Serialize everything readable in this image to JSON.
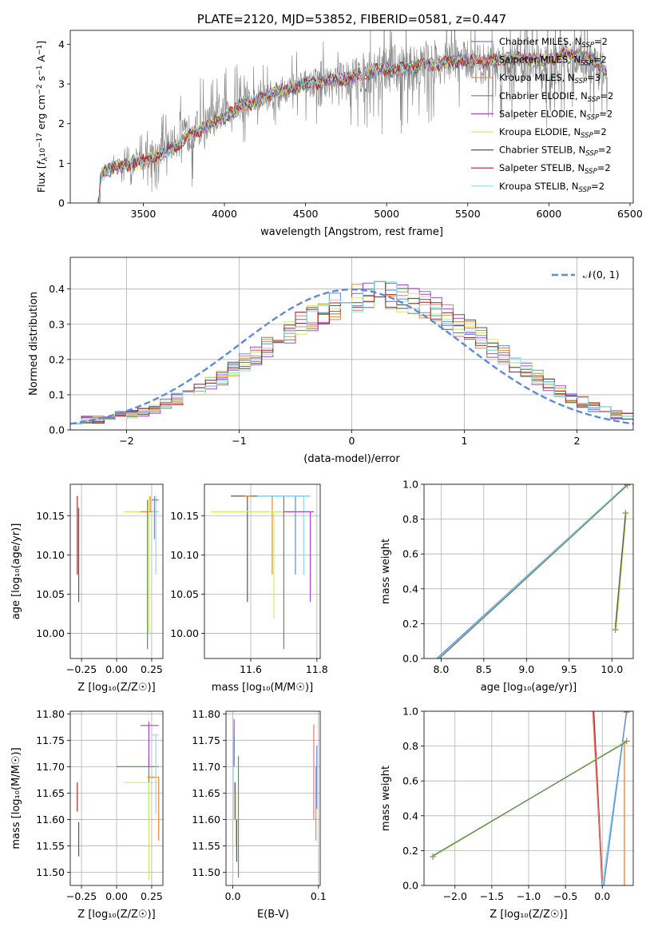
{
  "chart_data": [
    {
      "id": "spectrum",
      "type": "line",
      "title": "PLATE=2120, MJD=53852, FIBERID=0581, z=0.447",
      "xlabel": "wavelength [Angstrom, rest frame]",
      "ylabel_parts": [
        "Flux [",
        "f",
        "λ",
        "10",
        "−17",
        " erg cm",
        "−2",
        " s",
        "−1",
        " A",
        "−1",
        "]"
      ],
      "xlim": [
        3050,
        6520
      ],
      "ylim": [
        0,
        4.35
      ],
      "xticks": [
        3500,
        4000,
        4500,
        5000,
        5500,
        6000,
        6500
      ],
      "yticks": [
        0,
        1,
        2,
        3,
        4
      ],
      "grid": false,
      "legend_position": "upper-right",
      "observed": {
        "name": "data",
        "color": "#808080",
        "x": [
          3220,
          3240,
          3300,
          3400,
          3500,
          3600,
          3700,
          3800,
          3900,
          4000,
          4100,
          4200,
          4300,
          4400,
          4500,
          4600,
          4700,
          4800,
          4900,
          5000,
          5100,
          5200,
          5300,
          5400,
          5500,
          5600,
          5700,
          5800,
          5900,
          6000,
          6100,
          6200,
          6300,
          6360
        ],
        "y": [
          0.0,
          0.7,
          0.9,
          0.95,
          1.1,
          1.3,
          1.55,
          1.8,
          2.0,
          2.3,
          2.5,
          2.6,
          2.75,
          2.9,
          3.0,
          3.05,
          3.1,
          3.2,
          3.3,
          3.35,
          3.35,
          3.45,
          3.5,
          3.55,
          3.6,
          3.5,
          3.55,
          3.6,
          3.5,
          3.4,
          3.6,
          3.55,
          3.45,
          3.3
        ],
        "noise_amplitude_by_x": [
          [
            3220,
            0.1
          ],
          [
            3500,
            0.6
          ],
          [
            3800,
            1.0
          ],
          [
            4000,
            0.8
          ],
          [
            4500,
            0.7
          ],
          [
            5000,
            1.2
          ],
          [
            5500,
            1.0
          ],
          [
            6000,
            1.2
          ],
          [
            6360,
            0.9
          ]
        ]
      },
      "model": {
        "x": [
          3220,
          3240,
          3300,
          3400,
          3500,
          3600,
          3700,
          3800,
          3900,
          4000,
          4100,
          4200,
          4300,
          4400,
          4500,
          4600,
          4700,
          4800,
          4900,
          5000,
          5100,
          5200,
          5300,
          5400,
          5500,
          5600,
          5700,
          5800,
          5900,
          6000,
          6100,
          6200,
          6300,
          6360
        ],
        "y": [
          0.0,
          0.72,
          0.88,
          0.97,
          1.05,
          1.2,
          1.45,
          1.75,
          1.95,
          2.15,
          2.45,
          2.55,
          2.8,
          2.9,
          3.0,
          3.05,
          3.1,
          3.2,
          3.3,
          3.35,
          3.38,
          3.45,
          3.5,
          3.55,
          3.6,
          3.55,
          3.6,
          3.65,
          3.6,
          3.6,
          3.75,
          3.7,
          3.55,
          3.3
        ]
      },
      "series": [
        {
          "label": "Chabrier MILES, N",
          "sub": "SSP",
          "suffix": "=2",
          "color": "#6688dd"
        },
        {
          "label": "Salpeter MILES, N",
          "sub": "SSP",
          "suffix": "=2",
          "color": "#ee7766"
        },
        {
          "label": "Kroupa MILES, N",
          "sub": "SSP",
          "suffix": "=3",
          "color": "#ee8833"
        },
        {
          "label": "Chabrier ELODIE, N",
          "sub": "SSP",
          "suffix": "=2",
          "color": "#668866"
        },
        {
          "label": "Salpeter ELODIE, N",
          "sub": "SSP",
          "suffix": "=2",
          "color": "#aa44cc"
        },
        {
          "label": "Kroupa ELODIE, N",
          "sub": "SSP",
          "suffix": "=2",
          "color": "#ccee66"
        },
        {
          "label": "Chabrier STELIB, N",
          "sub": "SSP",
          "suffix": "=2",
          "color": "#555555"
        },
        {
          "label": "Salpeter STELIB, N",
          "sub": "SSP",
          "suffix": "=2",
          "color": "#aa2222"
        },
        {
          "label": "Kroupa STELIB, N",
          "sub": "SSP",
          "suffix": "=2",
          "color": "#88ddee"
        }
      ]
    },
    {
      "id": "residuals",
      "type": "histogram",
      "xlabel": "(data-model)/error",
      "ylabel": "Normed distribution",
      "xlim": [
        -2.5,
        2.5
      ],
      "ylim": [
        0,
        0.49
      ],
      "xticks": [
        -2,
        -1,
        0,
        1,
        2
      ],
      "yticks": [
        0.0,
        0.1,
        0.2,
        0.3,
        0.4
      ],
      "grid": true,
      "legend_position": "upper-right",
      "legend_label": "𝒩(0, 1)",
      "gaussian": {
        "mean": 0,
        "sigma": 1,
        "color": "#5b8bd9"
      },
      "bins": {
        "start": -2.5,
        "width": 0.1,
        "count": 50
      },
      "base_values": [
        0.028,
        0.028,
        0.03,
        0.035,
        0.04,
        0.045,
        0.052,
        0.06,
        0.075,
        0.088,
        0.1,
        0.115,
        0.13,
        0.15,
        0.17,
        0.19,
        0.212,
        0.235,
        0.258,
        0.28,
        0.3,
        0.32,
        0.338,
        0.354,
        0.366,
        0.376,
        0.382,
        0.384,
        0.382,
        0.376,
        0.366,
        0.354,
        0.338,
        0.32,
        0.3,
        0.28,
        0.258,
        0.235,
        0.212,
        0.19,
        0.168,
        0.148,
        0.128,
        0.11,
        0.094,
        0.08,
        0.066,
        0.054,
        0.044,
        0.036
      ]
    },
    {
      "id": "age-vs-Z",
      "type": "scatter",
      "xlabel": "Z [log₁₀(Z/Z☉)]",
      "ylabel": "age  [log₁₀(age/yr)]",
      "xlim": [
        -0.33,
        0.33
      ],
      "ylim": [
        9.968,
        10.19
      ],
      "xticks": [
        -0.25,
        0.0,
        0.25
      ],
      "xticklabels": [
        "−0.25",
        "0.00",
        "0.25"
      ],
      "yticks": [
        10.0,
        10.05,
        10.1,
        10.15
      ],
      "yticklabels": [
        "10.00",
        "10.05",
        "10.10",
        "10.15"
      ],
      "grid": true,
      "errorbars": [
        {
          "series": 7,
          "x": -0.28,
          "y": 10.12,
          "xerr": 0,
          "y0": 10.075,
          "y1": 10.175
        },
        {
          "series": 6,
          "x": -0.27,
          "y": 10.1,
          "xerr": 0,
          "y0": 10.04,
          "y1": 10.16
        },
        {
          "series": 3,
          "x": 0.22,
          "y": 10.1,
          "x0": 0.22,
          "x1": 0.22,
          "y0": 9.98,
          "y1": 10.17
        },
        {
          "series": 5,
          "x": 0.23,
          "y": 10.155,
          "x0": 0.05,
          "x1": 0.3,
          "y0": 10.0,
          "y1": 10.175
        },
        {
          "series": 2,
          "x": 0.24,
          "y": 10.155,
          "x0": 0.17,
          "x1": 0.3,
          "y0": 10.155,
          "y1": 10.175
        },
        {
          "series": 8,
          "x": 0.28,
          "y": 10.155,
          "x0": 0.25,
          "x1": 0.3,
          "y0": 10.075,
          "y1": 10.175
        },
        {
          "series": 0,
          "x": 0.27,
          "y": 10.17,
          "x0": 0.25,
          "x1": 0.3,
          "y0": 10.12,
          "y1": 10.175
        }
      ]
    },
    {
      "id": "age-vs-mass",
      "type": "scatter",
      "xlabel": "mass [log₁₀(M/M☉)]",
      "ylabel": "",
      "xlim": [
        11.46,
        11.81
      ],
      "ylim": [
        9.968,
        10.19
      ],
      "xticks": [
        11.6,
        11.8
      ],
      "xticklabels": [
        "11.6",
        "11.8"
      ],
      "yticks": [
        10.0,
        10.05,
        10.1,
        10.15
      ],
      "yticklabels": [
        "10.00",
        "10.05",
        "10.10",
        "10.15"
      ],
      "grid": true,
      "errorbars": [
        {
          "series": 6,
          "x0": 11.54,
          "x1": 11.64,
          "xv": 11.59,
          "y0": 10.04,
          "y1": 10.175
        },
        {
          "series": 2,
          "x0": 11.58,
          "x1": 11.67,
          "xv": 11.665,
          "y0": 10.075,
          "y1": 10.175
        },
        {
          "series": 5,
          "x0": 11.48,
          "x1": 11.79,
          "xv": 11.67,
          "y0": 10.02,
          "y1": 10.155
        },
        {
          "series": 3,
          "x0": 11.6,
          "x1": 11.78,
          "xv": 11.7,
          "y0": 9.98,
          "y1": 10.175
        },
        {
          "series": 0,
          "x0": 11.62,
          "x1": 11.78,
          "xv": 11.735,
          "y0": 10.075,
          "y1": 10.175
        },
        {
          "series": 8,
          "x0": 11.62,
          "x1": 11.78,
          "xv": 11.76,
          "y0": 10.075,
          "y1": 10.175
        },
        {
          "series": 4,
          "x0": 11.7,
          "x1": 11.79,
          "xv": 11.78,
          "y0": 10.04,
          "y1": 10.155
        }
      ]
    },
    {
      "id": "massweight-vs-age",
      "type": "line",
      "xlabel": "age  [log₁₀(age/yr)]",
      "ylabel": "mass weight",
      "xlim": [
        7.8,
        10.25
      ],
      "ylim": [
        0,
        1.0
      ],
      "xticks": [
        8.0,
        8.5,
        9.0,
        9.5,
        10.0
      ],
      "xticklabels": [
        "8.0",
        "8.5",
        "9.0",
        "9.5",
        "10.0"
      ],
      "yticks": [
        0.0,
        0.2,
        0.4,
        0.6,
        0.8,
        1.0
      ],
      "yticklabels": [
        "0.0",
        "0.2",
        "0.4",
        "0.6",
        "0.8",
        "1.0"
      ],
      "grid": true,
      "lines": [
        {
          "series": 0,
          "x": [
            7.95,
            10.18
          ],
          "y": [
            0.0,
            1.0
          ]
        },
        {
          "series": 8,
          "x": [
            7.97,
            10.18
          ],
          "y": [
            0.0,
            1.0
          ]
        },
        {
          "series": 3,
          "x": [
            7.98,
            10.17
          ],
          "y": [
            0.0,
            0.99
          ]
        },
        {
          "series": 5,
          "x": [
            10.05,
            10.17
          ],
          "y": [
            0.16,
            0.84
          ]
        },
        {
          "series": 6,
          "x": [
            10.04,
            10.16
          ],
          "y": [
            0.17,
            0.83
          ]
        }
      ],
      "markers": [
        [
          10.04,
          0.165
        ],
        [
          10.16,
          0.835
        ],
        [
          10.18,
          0.995
        ]
      ]
    },
    {
      "id": "mass-vs-Z",
      "type": "scatter",
      "xlabel": "Z [log₁₀(Z/Z☉)]",
      "ylabel": "mass [log₁₀(M/M☉)]",
      "xlim": [
        -0.33,
        0.33
      ],
      "ylim": [
        11.475,
        11.805
      ],
      "xticks": [
        -0.25,
        0.0,
        0.25
      ],
      "xticklabels": [
        "−0.25",
        "0.00",
        "0.25"
      ],
      "yticks": [
        11.5,
        11.55,
        11.6,
        11.65,
        11.7,
        11.75,
        11.8
      ],
      "yticklabels": [
        "11.50",
        "11.55",
        "11.60",
        "11.65",
        "11.70",
        "11.75",
        "11.80"
      ],
      "grid": true,
      "errorbars": [
        {
          "series": 7,
          "x": -0.28,
          "xl": -0.28,
          "xr": -0.28,
          "y0": 11.615,
          "y1": 11.67,
          "yv": 11.64
        },
        {
          "series": 6,
          "x": -0.27,
          "xl": -0.27,
          "xr": -0.27,
          "y0": 11.53,
          "y1": 11.595,
          "yv": 11.56
        },
        {
          "series": 3,
          "x": 0.23,
          "xl": 0.0,
          "xr": 0.3,
          "y0": 11.6,
          "y1": 11.72,
          "yv": 11.7
        },
        {
          "series": 5,
          "x": 0.23,
          "xl": 0.05,
          "xr": 0.3,
          "y0": 11.485,
          "y1": 11.67,
          "yv": 11.67
        },
        {
          "series": 4,
          "x": 0.23,
          "xl": 0.17,
          "xr": 0.3,
          "y0": 11.7,
          "y1": 11.785,
          "yv": 11.778
        },
        {
          "series": 2,
          "x": 0.3,
          "xl": 0.22,
          "xr": 0.3,
          "y0": 11.56,
          "y1": 11.68,
          "yv": 11.68
        },
        {
          "series": 8,
          "x": 0.28,
          "xl": 0.25,
          "xr": 0.3,
          "y0": 11.61,
          "y1": 11.76,
          "yv": 11.76
        }
      ]
    },
    {
      "id": "mass-vs-ebv",
      "type": "scatter",
      "xlabel": "E(B-V)",
      "ylabel": "",
      "xlim": [
        -0.008,
        0.102
      ],
      "ylim": [
        11.475,
        11.805
      ],
      "xticks": [
        0.0,
        0.1
      ],
      "xticklabels": [
        "0.0",
        "0.1"
      ],
      "yticks": [
        11.5,
        11.55,
        11.6,
        11.65,
        11.7,
        11.75,
        11.8
      ],
      "yticklabels": [
        "11.50",
        "11.55",
        "11.60",
        "11.65",
        "11.70",
        "11.75",
        "11.80"
      ],
      "grid": true,
      "errorbars": [
        {
          "series": 8,
          "x": 0.0005,
          "y0": 11.6,
          "y1": 11.76
        },
        {
          "series": 4,
          "x": 0.0015,
          "y0": 11.7,
          "y1": 11.79
        },
        {
          "series": 7,
          "x": 0.0025,
          "y0": 11.6,
          "y1": 11.67
        },
        {
          "series": 5,
          "x": 0.0035,
          "y0": 11.55,
          "y1": 11.65
        },
        {
          "series": 6,
          "x": 0.0045,
          "y0": 11.52,
          "y1": 11.6
        },
        {
          "series": 3,
          "x": 0.0065,
          "y0": 11.49,
          "y1": 11.72
        },
        {
          "series": 1,
          "x": 0.0945,
          "y0": 11.6,
          "y1": 11.78
        },
        {
          "series": 2,
          "x": 0.097,
          "y0": 11.56,
          "y1": 11.7
        },
        {
          "series": 0,
          "x": 0.098,
          "y0": 11.62,
          "y1": 11.74
        }
      ]
    },
    {
      "id": "massweight-vs-Z",
      "type": "line",
      "xlabel": "Z [log₁₀(Z/Z☉)]",
      "ylabel": "mass weight",
      "xlim": [
        -2.42,
        0.42
      ],
      "ylim": [
        0,
        1.0
      ],
      "xticks": [
        -2.0,
        -1.5,
        -1.0,
        -0.5,
        0.0
      ],
      "xticklabels": [
        "−2.0",
        "−1.5",
        "−1.0",
        "−0.5",
        "0.0"
      ],
      "yticks": [
        0.0,
        0.2,
        0.4,
        0.6,
        0.8,
        1.0
      ],
      "yticklabels": [
        "0.0",
        "0.2",
        "0.4",
        "0.6",
        "0.8",
        "1.0"
      ],
      "grid": true,
      "lines": [
        {
          "series": 7,
          "x": [
            -0.12,
            0.0
          ],
          "y": [
            1.0,
            0.0
          ]
        },
        {
          "series": 1,
          "x": [
            -0.13,
            0.0
          ],
          "y": [
            1.0,
            0.0
          ]
        },
        {
          "series": 2,
          "x": [
            0.3,
            0.3
          ],
          "y": [
            0.0,
            0.83
          ]
        },
        {
          "series": 8,
          "x": [
            0.0,
            0.33
          ],
          "y": [
            0.0,
            1.0
          ]
        },
        {
          "series": 0,
          "x": [
            0.02,
            0.33
          ],
          "y": [
            0.0,
            1.0
          ]
        },
        {
          "series": 5,
          "x": [
            -2.3,
            0.33
          ],
          "y": [
            0.165,
            0.83
          ]
        },
        {
          "series": 3,
          "x": [
            -2.3,
            0.33
          ],
          "y": [
            0.17,
            0.825
          ]
        }
      ],
      "markers": [
        [
          -2.3,
          0.165
        ],
        [
          0.33,
          0.828
        ],
        [
          0.33,
          0.995
        ]
      ]
    }
  ]
}
